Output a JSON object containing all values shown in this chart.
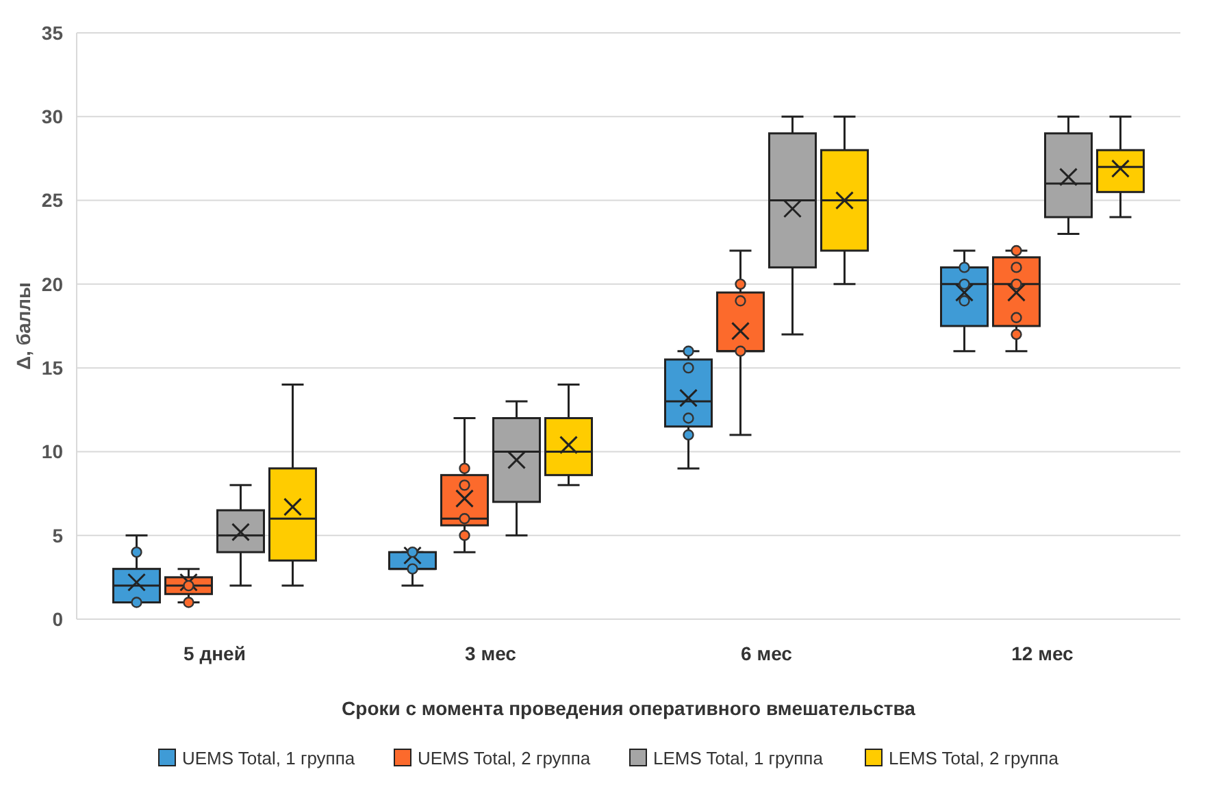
{
  "chart_data": {
    "type": "box",
    "xlabel": "Сроки с момента проведения оперативного вмешательства",
    "ylabel": "Δ, баллы",
    "categories": [
      "5 дней",
      "3 мес",
      "6 мес",
      "12 мес"
    ],
    "ylim": [
      0,
      35
    ],
    "yticks": [
      0,
      5,
      10,
      15,
      20,
      25,
      30,
      35
    ],
    "grid": "y",
    "legend": "bottom",
    "series": [
      {
        "name": "UEMS Total, 1 группа",
        "color": "#3f9bd6",
        "boxes": [
          {
            "low": 1,
            "q1": 1,
            "median": 2,
            "q3": 3,
            "high": 5,
            "mean": 2.2,
            "outliers": [
              4,
              1
            ]
          },
          {
            "low": 2,
            "q1": 3,
            "median": 3,
            "q3": 4,
            "high": 4,
            "mean": 3.8,
            "outliers": [
              3,
              4
            ]
          },
          {
            "low": 9,
            "q1": 11.5,
            "median": 13,
            "q3": 15.5,
            "high": 16,
            "mean": 13.2,
            "outliers": [
              16,
              15,
              12,
              11
            ]
          },
          {
            "low": 16,
            "q1": 17.5,
            "median": 20,
            "q3": 21,
            "high": 22,
            "mean": 19.5,
            "outliers": [
              21,
              20,
              19
            ]
          }
        ]
      },
      {
        "name": "UEMS Total, 2 группа",
        "color": "#fc6a2c",
        "boxes": [
          {
            "low": 1,
            "q1": 1.5,
            "median": 2,
            "q3": 2.5,
            "high": 3,
            "mean": 2.2,
            "outliers": [
              2,
              1
            ]
          },
          {
            "low": 4,
            "q1": 5.6,
            "median": 6,
            "q3": 8.6,
            "high": 12,
            "mean": 7.2,
            "outliers": [
              9,
              8,
              6,
              5
            ]
          },
          {
            "low": 11,
            "q1": 16,
            "median": 16,
            "q3": 19.5,
            "high": 22,
            "mean": 17.2,
            "outliers": [
              20,
              19,
              16
            ]
          },
          {
            "low": 16,
            "q1": 17.5,
            "median": 20,
            "q3": 21.6,
            "high": 22,
            "mean": 19.5,
            "outliers": [
              22,
              21,
              20,
              18,
              17
            ]
          }
        ]
      },
      {
        "name": "LEMS Total, 1 группа",
        "color": "#a5a5a5",
        "boxes": [
          {
            "low": 2,
            "q1": 4,
            "median": 5,
            "q3": 6.5,
            "high": 8,
            "mean": 5.2
          },
          {
            "low": 5,
            "q1": 7,
            "median": 10,
            "q3": 12,
            "high": 13,
            "mean": 9.5
          },
          {
            "low": 17,
            "q1": 21,
            "median": 25,
            "q3": 29,
            "high": 30,
            "mean": 24.5
          },
          {
            "low": 23,
            "q1": 24,
            "median": 26,
            "q3": 29,
            "high": 30,
            "mean": 26.4
          }
        ]
      },
      {
        "name": "LEMS Total, 2 группа",
        "color": "#ffcc00",
        "boxes": [
          {
            "low": 2,
            "q1": 3.5,
            "median": 6,
            "q3": 9,
            "high": 14,
            "mean": 6.7
          },
          {
            "low": 8,
            "q1": 8.6,
            "median": 10,
            "q3": 12,
            "high": 14,
            "mean": 10.4
          },
          {
            "low": 20,
            "q1": 22,
            "median": 25,
            "q3": 28,
            "high": 30,
            "mean": 25
          },
          {
            "low": 24,
            "q1": 25.5,
            "median": 27,
            "q3": 28,
            "high": 30,
            "mean": 26.9
          }
        ]
      }
    ]
  }
}
